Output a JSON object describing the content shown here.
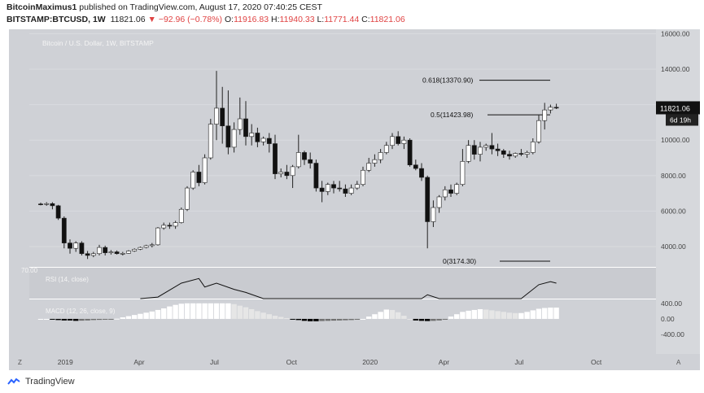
{
  "header": {
    "author": "BitcoinMaximus1",
    "published": "published on TradingView.com, August 17, 2020 07:40:25 CEST",
    "symbol": "BITSTAMP:BTCUSD, 1W",
    "last": "11821.06",
    "change": "−92.96 (−0.78%)",
    "o_label": "O:",
    "o_value": "11916.83",
    "h_label": "H:",
    "h_value": "11940.33",
    "l_label": "L:",
    "l_value": "11771.44",
    "c_label": "C:",
    "c_value": "11821.06"
  },
  "footer": {
    "brand": "TradingView"
  },
  "colors": {
    "pane_bg": "#cfd1d6",
    "candle_up": "#ffffff",
    "candle_down": "#111111",
    "line": "#222222"
  },
  "chart_data": [
    {
      "type": "candlestick",
      "title": "Bitcoin / U.S. Dollar, 1W, BITSTAMP",
      "x_labels": [
        "2019",
        "Apr",
        "Jul",
        "Oct",
        "2020",
        "Apr",
        "Jul",
        "Oct"
      ],
      "x_label_weeks": [
        4,
        17,
        30,
        43,
        56,
        69,
        82,
        95
      ],
      "ylim": [
        2900,
        16200
      ],
      "y_ticks": [
        "16000.00",
        "14000.00",
        "12000.00",
        "10000.00",
        "8000.00",
        "6000.00",
        "4000.00"
      ],
      "last_price_label": "11821.06",
      "countdown_label": "6d 19h",
      "fib_levels": [
        {
          "label": "0.618(13370.90)",
          "value": 13370.9
        },
        {
          "label": "0.5(11423.98)",
          "value": 11423.98
        },
        {
          "label": "0(3174.30)",
          "value": 3174.3
        }
      ],
      "ohlc": [
        [
          6400,
          6480,
          6320,
          6380
        ],
        [
          6380,
          6500,
          6300,
          6420
        ],
        [
          6420,
          6500,
          6100,
          6300
        ],
        [
          6300,
          6350,
          5500,
          5600
        ],
        [
          5600,
          5700,
          3900,
          4200
        ],
        [
          4200,
          4400,
          3600,
          3900
        ],
        [
          3900,
          4300,
          3700,
          4200
        ],
        [
          4200,
          4300,
          3500,
          3600
        ],
        [
          3600,
          3750,
          3300,
          3500
        ],
        [
          3500,
          3700,
          3400,
          3600
        ],
        [
          3600,
          4100,
          3500,
          3950
        ],
        [
          3950,
          4050,
          3500,
          3650
        ],
        [
          3650,
          3800,
          3550,
          3700
        ],
        [
          3700,
          3780,
          3550,
          3600
        ],
        [
          3600,
          3700,
          3500,
          3620
        ],
        [
          3620,
          3800,
          3600,
          3750
        ],
        [
          3750,
          3900,
          3700,
          3850
        ],
        [
          3850,
          4000,
          3800,
          3950
        ],
        [
          3950,
          4100,
          3900,
          4050
        ],
        [
          4050,
          4200,
          3950,
          4100
        ],
        [
          4100,
          5100,
          4050,
          5050
        ],
        [
          5050,
          5350,
          4950,
          5200
        ],
        [
          5200,
          5350,
          5000,
          5150
        ],
        [
          5150,
          5450,
          5000,
          5350
        ],
        [
          5350,
          6200,
          5300,
          6100
        ],
        [
          6100,
          7400,
          6000,
          7300
        ],
        [
          7300,
          8300,
          7200,
          8200
        ],
        [
          8200,
          8600,
          7400,
          7600
        ],
        [
          7600,
          9200,
          7500,
          9000
        ],
        [
          9000,
          11200,
          8900,
          10900
        ],
        [
          10900,
          13900,
          10000,
          11800
        ],
        [
          11800,
          13000,
          9800,
          10800
        ],
        [
          10800,
          12800,
          9200,
          9600
        ],
        [
          9600,
          11000,
          9300,
          10600
        ],
        [
          10600,
          12400,
          10300,
          11200
        ],
        [
          11200,
          12200,
          9700,
          10200
        ],
        [
          10200,
          10900,
          9700,
          10400
        ],
        [
          10400,
          10700,
          9600,
          9900
        ],
        [
          9900,
          10200,
          9700,
          10100
        ],
        [
          10100,
          10400,
          9300,
          9800
        ],
        [
          9800,
          10300,
          7800,
          8100
        ],
        [
          8100,
          8400,
          7900,
          8200
        ],
        [
          8200,
          8600,
          7800,
          8000
        ],
        [
          8000,
          8600,
          7300,
          8500
        ],
        [
          8500,
          10300,
          8400,
          9300
        ],
        [
          9300,
          9400,
          8600,
          8900
        ],
        [
          8900,
          9300,
          8400,
          8700
        ],
        [
          8700,
          8900,
          7100,
          7300
        ],
        [
          7300,
          7700,
          6500,
          7100
        ],
        [
          7100,
          7600,
          6900,
          7500
        ],
        [
          7500,
          7700,
          7000,
          7300
        ],
        [
          7300,
          7700,
          7100,
          7250
        ],
        [
          7250,
          7500,
          6800,
          7000
        ],
        [
          7000,
          7500,
          6900,
          7300
        ],
        [
          7300,
          7700,
          7200,
          7500
        ],
        [
          7500,
          8500,
          7400,
          8300
        ],
        [
          8300,
          9000,
          8200,
          8700
        ],
        [
          8700,
          9200,
          8500,
          8900
        ],
        [
          8900,
          9500,
          8700,
          9300
        ],
        [
          9300,
          9900,
          9200,
          9700
        ],
        [
          9700,
          10400,
          9500,
          10200
        ],
        [
          10200,
          10500,
          9700,
          9800
        ],
        [
          9800,
          10200,
          9500,
          10000
        ],
        [
          10000,
          10100,
          8500,
          8600
        ],
        [
          8600,
          8900,
          8300,
          8400
        ],
        [
          8400,
          8700,
          7700,
          7900
        ],
        [
          7900,
          8000,
          3900,
          5400
        ],
        [
          5400,
          6600,
          5100,
          6200
        ],
        [
          6200,
          6900,
          5900,
          6800
        ],
        [
          6800,
          7400,
          6600,
          7200
        ],
        [
          7200,
          7500,
          6800,
          7000
        ],
        [
          7000,
          7600,
          6900,
          7500
        ],
        [
          7500,
          9500,
          7400,
          8800
        ],
        [
          8800,
          10000,
          8700,
          9700
        ],
        [
          9700,
          10000,
          8900,
          9200
        ],
        [
          9200,
          9900,
          8800,
          9600
        ],
        [
          9600,
          9800,
          9400,
          9700
        ],
        [
          9700,
          10400,
          9200,
          9500
        ],
        [
          9500,
          9800,
          9100,
          9400
        ],
        [
          9400,
          9500,
          9000,
          9200
        ],
        [
          9200,
          9400,
          8900,
          9100
        ],
        [
          9100,
          9300,
          9000,
          9250
        ],
        [
          9250,
          9500,
          9100,
          9200
        ],
        [
          9200,
          9400,
          9000,
          9300
        ],
        [
          9300,
          10100,
          9200,
          9900
        ],
        [
          9900,
          11400,
          9800,
          11100
        ],
        [
          11100,
          12100,
          10600,
          11700
        ],
        [
          11700,
          12000,
          11500,
          11850
        ],
        [
          11850,
          12050,
          11750,
          11821
        ]
      ]
    },
    {
      "type": "line",
      "title": "RSI (14, close)",
      "level_label": "70.00",
      "x_weeks": [
        17,
        20,
        24,
        27,
        28,
        30,
        33,
        35,
        38,
        41,
        44,
        47,
        49,
        50,
        53,
        57,
        61,
        65,
        66,
        68,
        71,
        73,
        76,
        79,
        82,
        85,
        87,
        88
      ],
      "values": [
        55,
        62,
        80,
        86,
        75,
        80,
        72,
        68,
        60,
        59,
        55,
        58,
        50,
        45,
        50,
        52,
        56,
        60,
        65,
        55,
        52,
        60,
        57,
        58,
        60,
        78,
        82,
        80
      ]
    },
    {
      "type": "histogram",
      "title": "MACD (12, 26, close, 9)",
      "y_ticks": [
        "400.00",
        "0.00",
        "-400.00"
      ],
      "ylim": [
        -900,
        500
      ],
      "values": [
        0,
        0,
        -20,
        -30,
        -40,
        -40,
        -50,
        -45,
        -40,
        -30,
        -25,
        -15,
        -10,
        5,
        40,
        70,
        100,
        130,
        160,
        190,
        230,
        270,
        320,
        360,
        390,
        400,
        400,
        400,
        400,
        400,
        400,
        400,
        400,
        380,
        340,
        300,
        250,
        200,
        160,
        120,
        80,
        50,
        20,
        -10,
        -30,
        -50,
        -60,
        -60,
        -55,
        -50,
        -45,
        -40,
        -35,
        -30,
        -20,
        0,
        60,
        120,
        180,
        240,
        230,
        170,
        80,
        0,
        -40,
        -50,
        -55,
        -50,
        -40,
        -20,
        60,
        120,
        180,
        210,
        230,
        250,
        240,
        220,
        200,
        180,
        160,
        150,
        150,
        180,
        220,
        260,
        280,
        290,
        290
      ]
    }
  ]
}
